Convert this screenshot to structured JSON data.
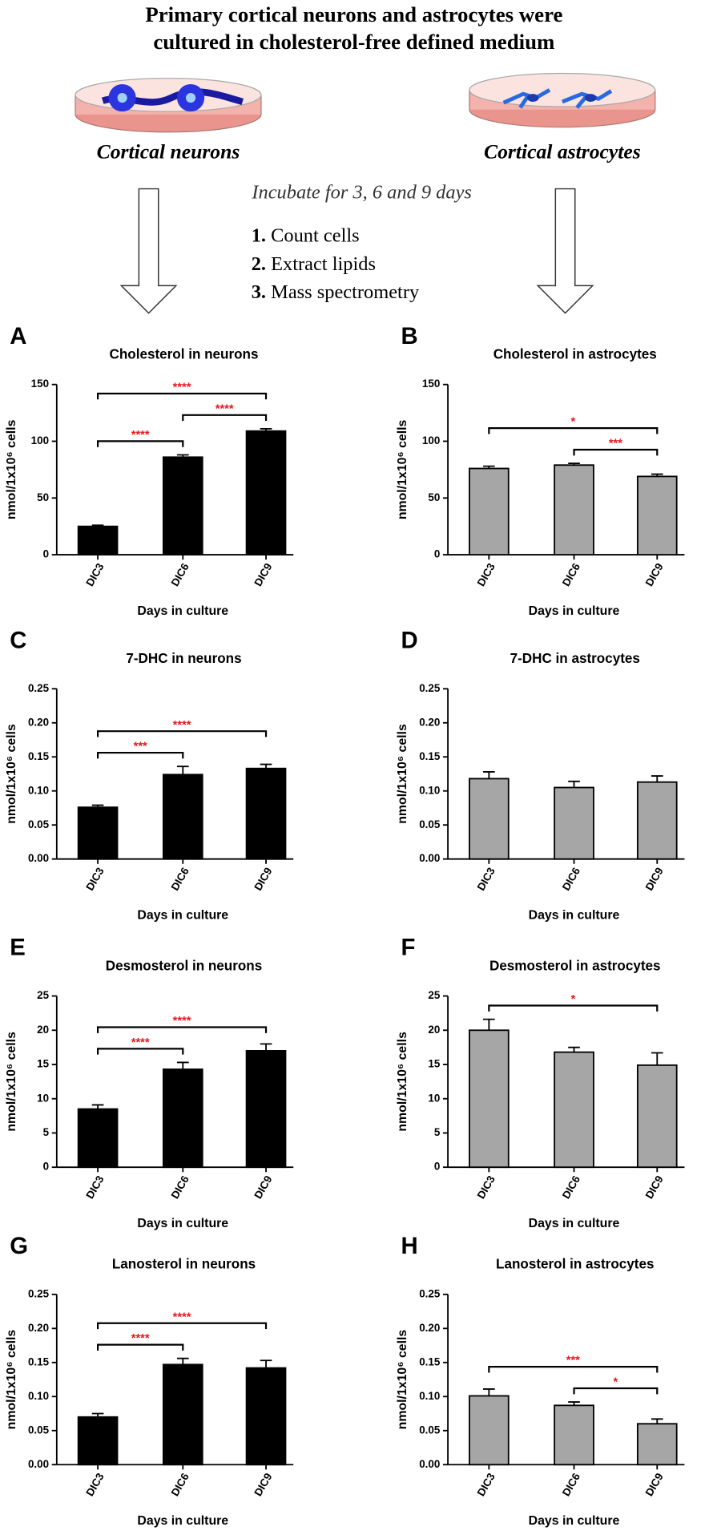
{
  "header": {
    "title_lines": [
      "Primary cortical neurons and astrocytes were",
      "cultured in cholesterol-free defined medium"
    ],
    "left_label": "Cortical neurons",
    "right_label": "Cortical astrocytes",
    "incubate": "Incubate for 3, 6 and 9 days",
    "steps": [
      {
        "number": "1.",
        "text": "Count cells"
      },
      {
        "number": "2.",
        "text": "Extract lipids"
      },
      {
        "number": "3.",
        "text": "Mass spectrometry"
      }
    ]
  },
  "chart_data": [
    {
      "type": "bar",
      "panel": "A",
      "title": "Cholesterol in neurons",
      "categories": [
        "DIC3",
        "DIC6",
        "DIC9"
      ],
      "values": [
        25,
        86,
        109
      ],
      "errors": [
        1,
        2,
        2
      ],
      "color": "#000000",
      "xlabel": "Days in culture",
      "ylabel": "nmol/1x10⁶ cells",
      "ylim": [
        0,
        150
      ],
      "yticks": [
        0,
        50,
        100,
        150
      ],
      "annotation_color": "#e8171c",
      "brackets": [
        {
          "from": "DIC3",
          "to": "DIC6",
          "label": "****"
        },
        {
          "from": "DIC6",
          "to": "DIC9",
          "label": "****"
        },
        {
          "from": "DIC3",
          "to": "DIC9",
          "label": "****"
        }
      ]
    },
    {
      "type": "bar",
      "panel": "B",
      "title": "Cholesterol in astrocytes",
      "categories": [
        "DIC3",
        "DIC6",
        "DIC9"
      ],
      "values": [
        76,
        79,
        69
      ],
      "errors": [
        2,
        1.5,
        2
      ],
      "color": "#a6a6a6",
      "xlabel": "Days in culture",
      "ylabel": "nmol/1x10⁶ cells",
      "ylim": [
        0,
        150
      ],
      "yticks": [
        0,
        50,
        100,
        150
      ],
      "annotation_color": "#e8171c",
      "brackets": [
        {
          "from": "DIC6",
          "to": "DIC9",
          "label": "***"
        },
        {
          "from": "DIC3",
          "to": "DIC9",
          "label": "*"
        }
      ]
    },
    {
      "type": "bar",
      "panel": "C",
      "title": "7-DHC in neurons",
      "categories": [
        "DIC3",
        "DIC6",
        "DIC9"
      ],
      "values": [
        0.076,
        0.124,
        0.133
      ],
      "errors": [
        0.003,
        0.012,
        0.006
      ],
      "color": "#000000",
      "xlabel": "Days in culture",
      "ylabel": "nmol/1x10⁶ cells",
      "ylim": [
        0,
        0.25
      ],
      "yticks": [
        {
          "value": 0,
          "label": "0.00"
        },
        0.05,
        {
          "value": 0.1,
          "label": "0.10"
        },
        0.15,
        {
          "value": 0.2,
          "label": "0.20"
        },
        0.25
      ],
      "annotation_color": "#e8171c",
      "brackets": [
        {
          "from": "DIC3",
          "to": "DIC6",
          "label": "***"
        },
        {
          "from": "DIC3",
          "to": "DIC9",
          "label": "****"
        }
      ]
    },
    {
      "type": "bar",
      "panel": "D",
      "title": "7-DHC in astrocytes",
      "categories": [
        "DIC3",
        "DIC6",
        "DIC9"
      ],
      "values": [
        0.118,
        0.105,
        0.113
      ],
      "errors": [
        0.01,
        0.009,
        0.009
      ],
      "color": "#a6a6a6",
      "xlabel": "Days in culture",
      "ylabel": "nmol/1x10⁶ cells",
      "ylim": [
        0,
        0.25
      ],
      "yticks": [
        {
          "value": 0,
          "label": "0.00"
        },
        0.05,
        {
          "value": 0.1,
          "label": "0.10"
        },
        0.15,
        {
          "value": 0.2,
          "label": "0.20"
        },
        0.25
      ],
      "annotation_color": "#e8171c",
      "brackets": []
    },
    {
      "type": "bar",
      "panel": "E",
      "title": "Desmosterol in neurons",
      "categories": [
        "DIC3",
        "DIC6",
        "DIC9"
      ],
      "values": [
        8.5,
        14.3,
        17
      ],
      "errors": [
        0.6,
        1.0,
        1.0
      ],
      "color": "#000000",
      "xlabel": "Days in culture",
      "ylabel": "nmol/1x10⁶ cells",
      "ylim": [
        0,
        25
      ],
      "yticks": [
        0,
        5,
        10,
        15,
        20,
        25
      ],
      "annotation_color": "#e8171c",
      "brackets": [
        {
          "from": "DIC3",
          "to": "DIC6",
          "label": "****"
        },
        {
          "from": "DIC3",
          "to": "DIC9",
          "label": "****"
        }
      ]
    },
    {
      "type": "bar",
      "panel": "F",
      "title": "Desmosterol in astrocytes",
      "categories": [
        "DIC3",
        "DIC6",
        "DIC9"
      ],
      "values": [
        20,
        16.8,
        14.9
      ],
      "errors": [
        1.6,
        0.7,
        1.8
      ],
      "color": "#a6a6a6",
      "xlabel": "Days in culture",
      "ylabel": "nmol/1x10⁶ cells",
      "ylim": [
        0,
        25
      ],
      "yticks": [
        0,
        5,
        10,
        15,
        20,
        25
      ],
      "annotation_color": "#e8171c",
      "brackets": [
        {
          "from": "DIC3",
          "to": "DIC9",
          "label": "*"
        }
      ]
    },
    {
      "type": "bar",
      "panel": "G",
      "title": "Lanosterol in neurons",
      "categories": [
        "DIC3",
        "DIC6",
        "DIC9"
      ],
      "values": [
        0.07,
        0.147,
        0.142
      ],
      "errors": [
        0.005,
        0.009,
        0.011
      ],
      "color": "#000000",
      "xlabel": "Days in culture",
      "ylabel": "nmol/1x10⁶ cells",
      "ylim": [
        0,
        0.25
      ],
      "yticks": [
        {
          "value": 0,
          "label": "0.00"
        },
        0.05,
        {
          "value": 0.1,
          "label": "0.10"
        },
        0.15,
        {
          "value": 0.2,
          "label": "0.20"
        },
        0.25
      ],
      "annotation_color": "#e8171c",
      "brackets": [
        {
          "from": "DIC3",
          "to": "DIC6",
          "label": "****"
        },
        {
          "from": "DIC3",
          "to": "DIC9",
          "label": "****"
        }
      ]
    },
    {
      "type": "bar",
      "panel": "H",
      "title": "Lanosterol in astrocytes",
      "categories": [
        "DIC3",
        "DIC6",
        "DIC9"
      ],
      "values": [
        0.101,
        0.087,
        0.06
      ],
      "errors": [
        0.01,
        0.005,
        0.007
      ],
      "color": "#a6a6a6",
      "xlabel": "Days in culture",
      "ylabel": "nmol/1x10⁶ cells",
      "ylim": [
        0,
        0.25
      ],
      "yticks": [
        {
          "value": 0,
          "label": "0.00"
        },
        0.05,
        {
          "value": 0.1,
          "label": "0.10"
        },
        0.15,
        {
          "value": 0.2,
          "label": "0.20"
        },
        0.25
      ],
      "annotation_color": "#e8171c",
      "brackets": [
        {
          "from": "DIC6",
          "to": "DIC9",
          "label": "*"
        },
        {
          "from": "DIC3",
          "to": "DIC9",
          "label": "***"
        }
      ]
    }
  ]
}
